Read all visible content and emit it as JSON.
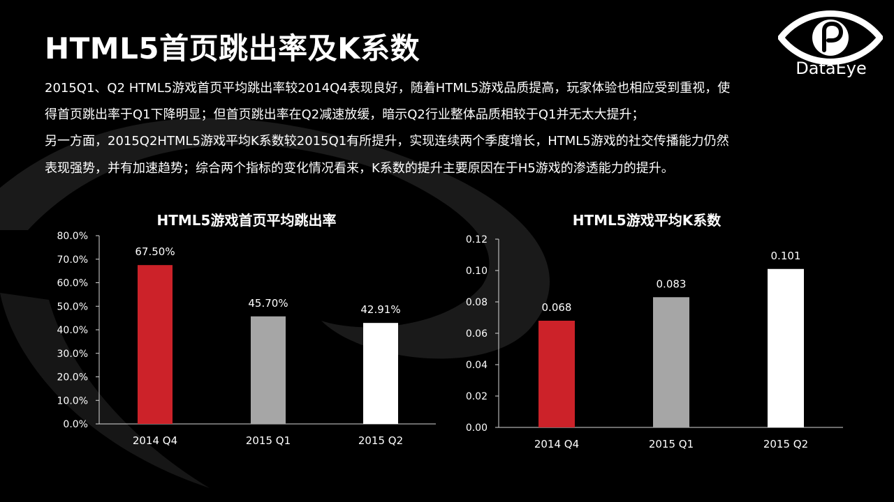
{
  "slide": {
    "title": "HTML5首页跳出率及K系数",
    "paragraphs": [
      "2015Q1、Q2  HTML5游戏首页平均跳出率较2014Q4表现良好，随着HTML5游戏品质提高，玩家体验也相应受到重视，使",
      "得首页跳出率于Q1下降明显；但首页跳出率在Q2减速放缓，暗示Q2行业整体品质相较于Q1并无太大提升；",
      "另一方面，2015Q2HTML5游戏平均K系数较2015Q1有所提升，实现连续两个季度增长，HTML5游戏的社交传播能力仍然",
      "表现强势，并有加速趋势；综合两个指标的变化情况看来，K系数的提升主要原因在于H5游戏的渗透能力的提升。"
    ]
  },
  "logo": {
    "text": "DataEye",
    "icon": "dataeye-eye-logo-icon"
  },
  "colors": {
    "background": "#000000",
    "red": "#CC2229",
    "gray": "#A6A6A6",
    "white": "#FFFFFF",
    "watermark": "#1c1c1c"
  },
  "chart_data": [
    {
      "type": "bar",
      "title": "HTML5游戏首页平均跳出率",
      "categories": [
        "2014 Q4",
        "2015 Q1",
        "2015 Q2"
      ],
      "values": [
        67.5,
        45.7,
        42.91
      ],
      "data_labels": [
        "67.50%",
        "45.70%",
        "42.91%"
      ],
      "bar_colors": [
        "#CC2229",
        "#A6A6A6",
        "#FFFFFF"
      ],
      "ylim": [
        0,
        80
      ],
      "yticks": [
        0,
        10,
        20,
        30,
        40,
        50,
        60,
        70,
        80
      ],
      "ytick_labels": [
        "0.0%",
        "10.0%",
        "20.0%",
        "30.0%",
        "40.0%",
        "50.0%",
        "60.0%",
        "70.0%",
        "80.0%"
      ],
      "grid": false,
      "legend": "none"
    },
    {
      "type": "bar",
      "title": "HTML5游戏平均K系数",
      "categories": [
        "2014 Q4",
        "2015 Q1",
        "2015 Q2"
      ],
      "values": [
        0.068,
        0.083,
        0.101
      ],
      "data_labels": [
        "0.068",
        "0.083",
        "0.101"
      ],
      "bar_colors": [
        "#CC2229",
        "#A6A6A6",
        "#FFFFFF"
      ],
      "ylim": [
        0,
        0.12
      ],
      "yticks": [
        0,
        0.02,
        0.04,
        0.06,
        0.08,
        0.1,
        0.12
      ],
      "ytick_labels": [
        "0.00",
        "0.02",
        "0.04",
        "0.06",
        "0.08",
        "0.10",
        "0.12"
      ],
      "grid": false,
      "legend": "none"
    }
  ]
}
